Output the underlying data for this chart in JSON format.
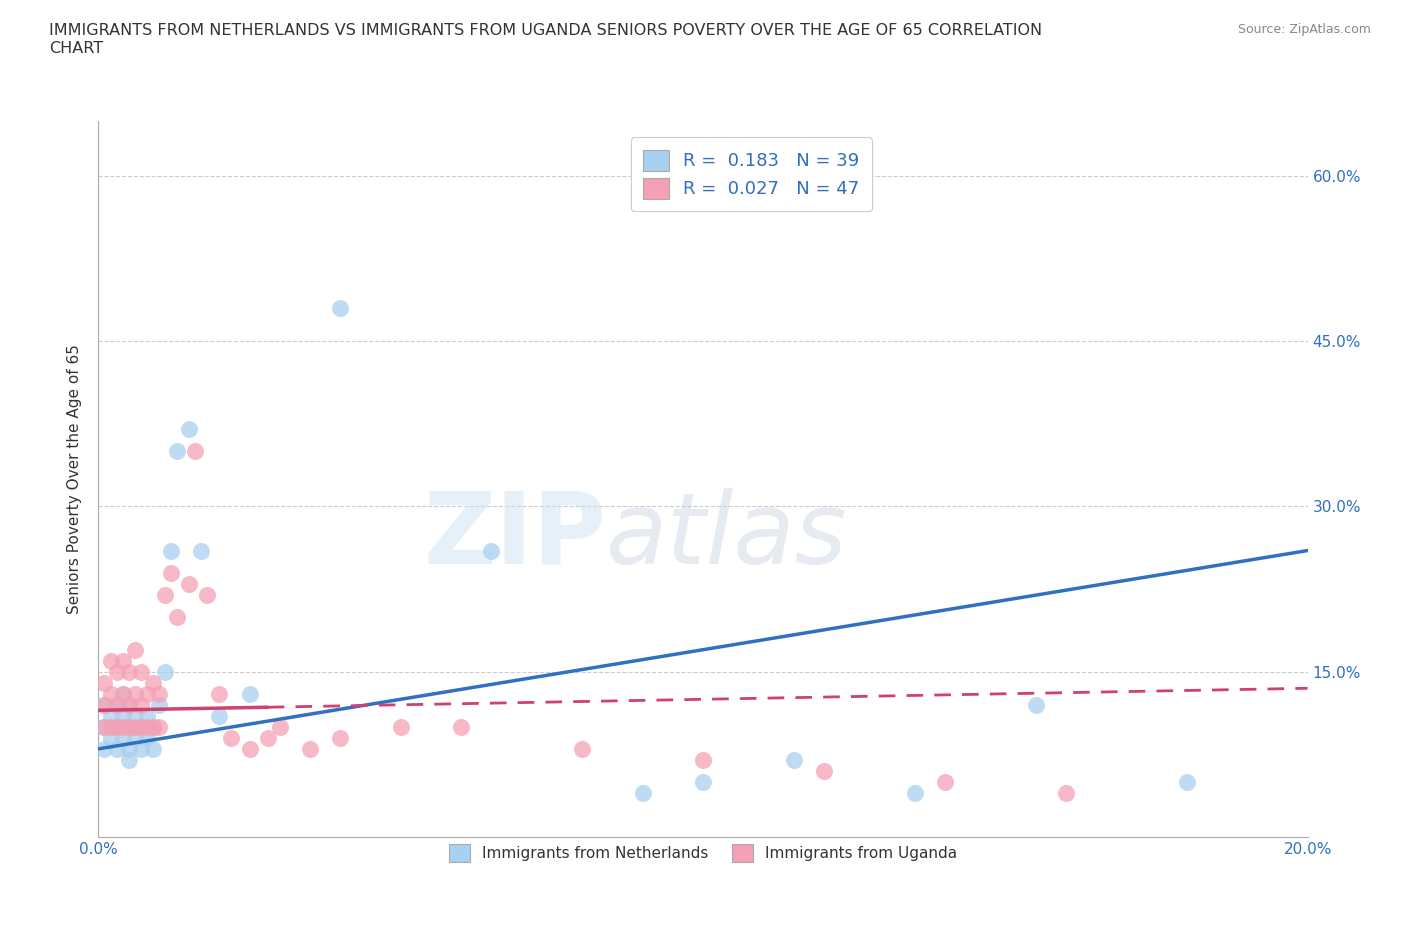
{
  "title": "IMMIGRANTS FROM NETHERLANDS VS IMMIGRANTS FROM UGANDA SENIORS POVERTY OVER THE AGE OF 65 CORRELATION\nCHART",
  "source_text": "Source: ZipAtlas.com",
  "ylabel": "Seniors Poverty Over the Age of 65",
  "xlabel": "",
  "watermark_zip": "ZIP",
  "watermark_atlas": "atlas",
  "xlim": [
    0.0,
    0.2
  ],
  "ylim": [
    0.0,
    0.65
  ],
  "xticks": [
    0.0,
    0.05,
    0.1,
    0.15,
    0.2
  ],
  "yticks": [
    0.0,
    0.15,
    0.3,
    0.45,
    0.6
  ],
  "color_netherlands": "#a8d0f0",
  "color_uganda": "#f5a0b5",
  "line_color_netherlands": "#3070c0",
  "line_color_uganda": "#d04070",
  "R_netherlands": 0.183,
  "N_netherlands": 39,
  "R_uganda": 0.027,
  "N_uganda": 47,
  "netherlands_x": [
    0.001,
    0.001,
    0.001,
    0.002,
    0.002,
    0.003,
    0.003,
    0.003,
    0.004,
    0.004,
    0.004,
    0.005,
    0.005,
    0.005,
    0.005,
    0.006,
    0.006,
    0.007,
    0.007,
    0.008,
    0.008,
    0.009,
    0.009,
    0.01,
    0.011,
    0.012,
    0.013,
    0.015,
    0.017,
    0.02,
    0.025,
    0.04,
    0.065,
    0.09,
    0.1,
    0.115,
    0.135,
    0.155,
    0.18
  ],
  "netherlands_y": [
    0.1,
    0.12,
    0.08,
    0.09,
    0.11,
    0.08,
    0.1,
    0.12,
    0.09,
    0.11,
    0.13,
    0.08,
    0.1,
    0.12,
    0.07,
    0.09,
    0.11,
    0.08,
    0.1,
    0.09,
    0.11,
    0.08,
    0.1,
    0.12,
    0.15,
    0.26,
    0.35,
    0.37,
    0.26,
    0.11,
    0.13,
    0.48,
    0.26,
    0.04,
    0.05,
    0.07,
    0.04,
    0.12,
    0.05
  ],
  "uganda_x": [
    0.001,
    0.001,
    0.001,
    0.002,
    0.002,
    0.002,
    0.003,
    0.003,
    0.003,
    0.004,
    0.004,
    0.004,
    0.005,
    0.005,
    0.005,
    0.006,
    0.006,
    0.006,
    0.007,
    0.007,
    0.007,
    0.008,
    0.008,
    0.009,
    0.009,
    0.01,
    0.01,
    0.011,
    0.012,
    0.013,
    0.015,
    0.016,
    0.018,
    0.02,
    0.022,
    0.025,
    0.028,
    0.03,
    0.035,
    0.04,
    0.05,
    0.06,
    0.08,
    0.1,
    0.12,
    0.14,
    0.16
  ],
  "uganda_y": [
    0.1,
    0.12,
    0.14,
    0.1,
    0.13,
    0.16,
    0.1,
    0.12,
    0.15,
    0.1,
    0.13,
    0.16,
    0.1,
    0.12,
    0.15,
    0.1,
    0.13,
    0.17,
    0.1,
    0.12,
    0.15,
    0.1,
    0.13,
    0.1,
    0.14,
    0.1,
    0.13,
    0.22,
    0.24,
    0.2,
    0.23,
    0.35,
    0.22,
    0.13,
    0.09,
    0.08,
    0.09,
    0.1,
    0.08,
    0.09,
    0.1,
    0.1,
    0.08,
    0.07,
    0.06,
    0.05,
    0.04
  ],
  "legend_label_netherlands": "Immigrants from Netherlands",
  "legend_label_uganda": "Immigrants from Uganda",
  "background_color": "#ffffff",
  "grid_color": "#cccccc",
  "nl_line_x0": 0.0,
  "nl_line_y0": 0.08,
  "nl_line_x1": 0.2,
  "nl_line_y1": 0.26,
  "ug_line_x0": 0.0,
  "ug_line_y0": 0.115,
  "ug_line_x1": 0.2,
  "ug_line_y1": 0.135
}
